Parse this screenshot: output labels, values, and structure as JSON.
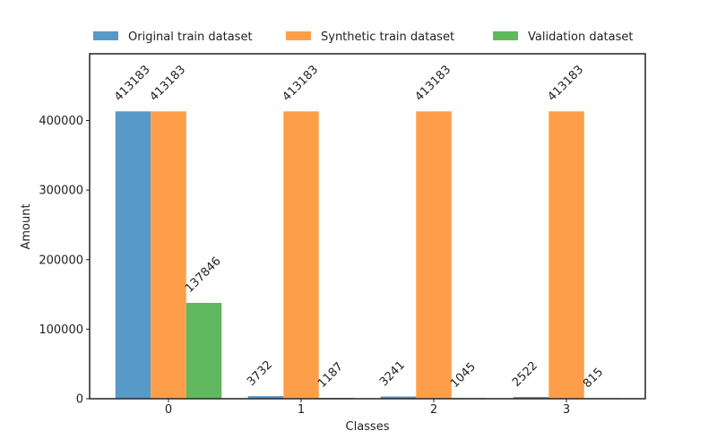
{
  "chart_data": {
    "type": "bar",
    "title": "",
    "xlabel": "Classes",
    "ylabel": "Amount",
    "categories": [
      "0",
      "1",
      "2",
      "3"
    ],
    "ylim": [
      0,
      496000
    ],
    "yticks": [
      0,
      100000,
      200000,
      300000,
      400000
    ],
    "ytick_labels": [
      "0",
      "100000",
      "200000",
      "300000",
      "400000"
    ],
    "grid": false,
    "legend_position": "top",
    "series": [
      {
        "name": "Original train dataset",
        "color": "#5799c7",
        "values": [
          413183,
          3732,
          3241,
          2522
        ],
        "labels": [
          "413183",
          "3732",
          "3241",
          "2522"
        ]
      },
      {
        "name": "Synthetic train dataset",
        "color": "#ff9e4a",
        "values": [
          413183,
          413183,
          413183,
          413183
        ],
        "labels": [
          "413183",
          "413183",
          "413183",
          "413183"
        ]
      },
      {
        "name": "Validation dataset",
        "color": "#60b95f",
        "values": [
          137846,
          1187,
          1045,
          815
        ],
        "labels": [
          "137846",
          "1187",
          "1045",
          "815"
        ]
      }
    ]
  }
}
